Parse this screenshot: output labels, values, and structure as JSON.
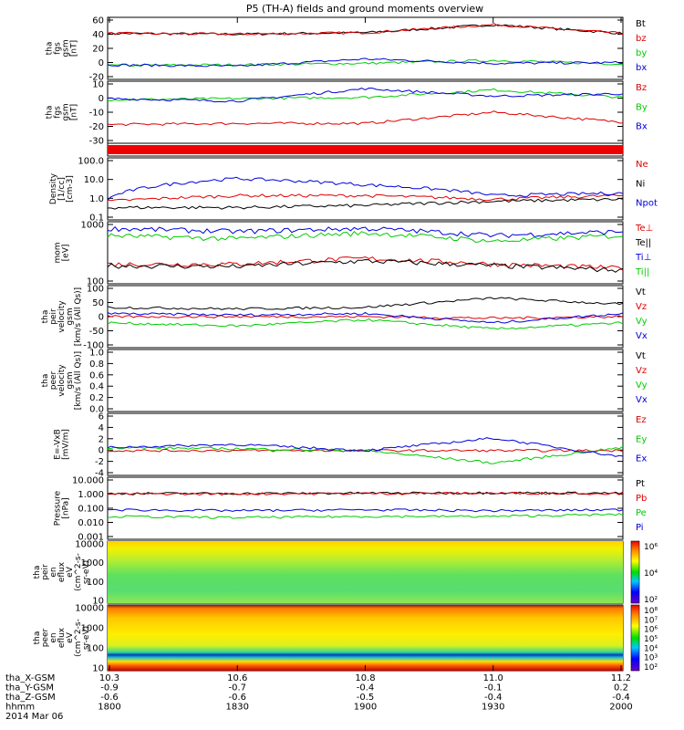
{
  "title": "P5 (TH-A) fields and ground moments overview",
  "colors": {
    "black": "#000000",
    "red": "#e00000",
    "green": "#00cc00",
    "blue": "#0000dd"
  },
  "panels": [
    {
      "id": "p1",
      "ylabel": [
        "tha",
        "fgs",
        "gsm",
        "[nT]"
      ],
      "ticks": [
        "60",
        "40",
        "20",
        "0",
        "-20"
      ],
      "legend": [
        {
          "text": "Bt",
          "color": "black"
        },
        {
          "text": "bz",
          "color": "red"
        },
        {
          "text": "by",
          "color": "green"
        },
        {
          "text": "bx",
          "color": "blue"
        }
      ]
    },
    {
      "id": "p2",
      "ylabel": [
        "tha",
        "fgs",
        "gsm",
        "[nT]"
      ],
      "ticks": [
        "10",
        "0",
        "-10",
        "-20",
        "-30"
      ],
      "legend": [
        {
          "text": "Bz",
          "color": "red"
        },
        {
          "text": "By",
          "color": "green"
        },
        {
          "text": "Bx",
          "color": "blue"
        }
      ]
    },
    {
      "id": "p3",
      "ylabel": [],
      "ticks": [],
      "legend": []
    },
    {
      "id": "p4",
      "ylabel": [
        "Density",
        "[1/cc]",
        "[cm-3]"
      ],
      "ticks": [
        "100.0",
        "10.0",
        "1.0",
        "0.1"
      ],
      "legend": [
        {
          "text": "Ne",
          "color": "red"
        },
        {
          "text": "Ni",
          "color": "black"
        },
        {
          "text": "Npot",
          "color": "blue"
        }
      ]
    },
    {
      "id": "p5",
      "ylabel": [
        "mom",
        "[eV]"
      ],
      "ticks": [
        "1000",
        "100"
      ],
      "legend": [
        {
          "text": "Te⊥",
          "color": "red"
        },
        {
          "text": "Te||",
          "color": "black"
        },
        {
          "text": "Ti⊥",
          "color": "blue"
        },
        {
          "text": "Ti||",
          "color": "green"
        }
      ]
    },
    {
      "id": "p6",
      "ylabel": [
        "tha",
        "peir",
        "velocity",
        "gsm",
        "[km/s (All Qs)]"
      ],
      "ticks": [
        "100",
        "50",
        "0",
        "-50",
        "-100"
      ],
      "legend": [
        {
          "text": "Vt",
          "color": "black"
        },
        {
          "text": "Vz",
          "color": "red"
        },
        {
          "text": "Vy",
          "color": "green"
        },
        {
          "text": "Vx",
          "color": "blue"
        }
      ]
    },
    {
      "id": "p7",
      "ylabel": [
        "tha",
        "peer",
        "velocity",
        "gsm",
        "[km/s (All Qs)]"
      ],
      "ticks": [
        "1.0",
        "0.8",
        "0.6",
        "0.4",
        "0.2",
        "0.0"
      ],
      "legend": [
        {
          "text": "Vt",
          "color": "black"
        },
        {
          "text": "Vz",
          "color": "red"
        },
        {
          "text": "Vy",
          "color": "green"
        },
        {
          "text": "Vx",
          "color": "blue"
        }
      ]
    },
    {
      "id": "p8",
      "ylabel": [
        "E=-VxB",
        "[mV/m]"
      ],
      "ticks": [
        "6",
        "4",
        "2",
        "0",
        "-2",
        "-4"
      ],
      "legend": [
        {
          "text": "Ez",
          "color": "red"
        },
        {
          "text": "Ey",
          "color": "green"
        },
        {
          "text": "Ex",
          "color": "blue"
        }
      ]
    },
    {
      "id": "p9",
      "ylabel": [
        "Pressure",
        "[nPa]"
      ],
      "ticks": [
        "10.000",
        "1.000",
        "0.100",
        "0.010",
        "0.001"
      ],
      "legend": [
        {
          "text": "Pt",
          "color": "black"
        },
        {
          "text": "Pb",
          "color": "red"
        },
        {
          "text": "Pe",
          "color": "green"
        },
        {
          "text": "Pi",
          "color": "blue"
        }
      ]
    },
    {
      "id": "p10",
      "ylabel": [
        "tha",
        "peir",
        "en",
        "eflux",
        "eV",
        "(cm^2-s-",
        "sr-eV)"
      ],
      "ticks": [
        "10000",
        "1000",
        "100",
        "10"
      ],
      "legend": []
    },
    {
      "id": "p11",
      "ylabel": [
        "tha",
        "peer",
        "en",
        "eflux",
        "eV",
        "(cm^2-s-",
        "sr-eV)"
      ],
      "ticks": [
        "10000",
        "1000",
        "100",
        "10"
      ],
      "legend": []
    }
  ],
  "colorbars": [
    {
      "id": "cb1",
      "ticks": [
        "10^6",
        "10^4",
        "10^2"
      ]
    },
    {
      "id": "cb2",
      "ticks": [
        "10^8",
        "10^7",
        "10^6",
        "10^5",
        "10^4",
        "10^3",
        "10^2"
      ]
    }
  ],
  "xaxis": {
    "row_labels": [
      "tha_X-GSM",
      "tha_Y-GSM",
      "tha_Z-GSM",
      "hhmm",
      "2014 Mar 06"
    ],
    "columns": [
      {
        "vals": [
          "10.3",
          "-0.9",
          "-0.6",
          "1800"
        ]
      },
      {
        "vals": [
          "10.6",
          "-0.7",
          "-0.6",
          "1830"
        ]
      },
      {
        "vals": [
          "10.8",
          "-0.4",
          "-0.5",
          "1900"
        ]
      },
      {
        "vals": [
          "11.0",
          "-0.1",
          "-0.4",
          "1930"
        ]
      },
      {
        "vals": [
          "11.2",
          "0.2",
          "-0.4",
          "2000"
        ]
      }
    ]
  },
  "chart_data": {
    "type": "line",
    "x_time_hhmm": [
      "1800",
      "1830",
      "1900",
      "1930",
      "2000"
    ],
    "panels": [
      {
        "name": "fgs_gsm_1",
        "ylim": [
          -20,
          65
        ],
        "series": [
          {
            "name": "Bt",
            "values": [
              43,
              42,
              44,
              55,
              43
            ]
          },
          {
            "name": "bz",
            "values": [
              43,
              42,
              44,
              55,
              43
            ]
          },
          {
            "name": "by",
            "values": [
              -1,
              0,
              2,
              6,
              1
            ]
          },
          {
            "name": "bx",
            "values": [
              0,
              -2,
              8,
              2,
              3
            ]
          }
        ]
      },
      {
        "name": "fgs_gsm_2",
        "ylim": [
          -35,
          15
        ],
        "series": [
          {
            "name": "Bz",
            "values": [
              -20,
              -19,
              -19,
              -10,
              -18
            ]
          },
          {
            "name": "By",
            "values": [
              0,
              1,
              2,
              8,
              2
            ]
          },
          {
            "name": "Bx",
            "values": [
              1,
              -1,
              9,
              3,
              5
            ]
          }
        ]
      },
      {
        "name": "Density",
        "scale": "log",
        "ylim": [
          0.1,
          100
        ],
        "series": [
          {
            "name": "Ne",
            "values": [
              0.8,
              1.5,
              1.5,
              1.0,
              1.5
            ]
          },
          {
            "name": "Ni",
            "values": [
              0.4,
              0.4,
              0.5,
              0.8,
              1.0
            ]
          },
          {
            "name": "Npot",
            "values": [
              1.0,
              10,
              5,
              1.5,
              2
            ]
          }
        ]
      },
      {
        "name": "mom",
        "scale": "log",
        "ylim": [
          50,
          4000
        ],
        "series": [
          {
            "name": "Te⊥",
            "values": [
              200,
              200,
              300,
              200,
              150
            ]
          },
          {
            "name": "Te||",
            "values": [
              180,
              170,
              250,
              180,
              130
            ]
          },
          {
            "name": "Ti⊥",
            "values": [
              2500,
              2000,
              2500,
              1500,
              2000
            ]
          },
          {
            "name": "Ti||",
            "values": [
              1500,
              1200,
              1800,
              1000,
              1500
            ]
          }
        ]
      },
      {
        "name": "peir_velocity",
        "ylim": [
          -100,
          100
        ],
        "series": [
          {
            "name": "Vt",
            "values": [
              30,
              25,
              30,
              60,
              40
            ]
          },
          {
            "name": "Vz",
            "values": [
              0,
              0,
              0,
              -5,
              0
            ]
          },
          {
            "name": "Vy",
            "values": [
              -20,
              -30,
              -10,
              -40,
              -20
            ]
          },
          {
            "name": "Vx",
            "values": [
              10,
              5,
              10,
              -20,
              10
            ]
          }
        ]
      },
      {
        "name": "peer_velocity",
        "ylim": [
          0,
          1
        ],
        "series": []
      },
      {
        "name": "E=-VxB",
        "ylim": [
          -4,
          6
        ],
        "series": [
          {
            "name": "Ez",
            "values": [
              0,
              0,
              0,
              0,
              0
            ]
          },
          {
            "name": "Ey",
            "values": [
              0.5,
              0.3,
              0,
              -2,
              0.5
            ]
          },
          {
            "name": "Ex",
            "values": [
              0.5,
              1,
              0,
              2,
              -1
            ]
          }
        ]
      },
      {
        "name": "Pressure",
        "scale": "log",
        "ylim": [
          0.001,
          10
        ],
        "series": [
          {
            "name": "Pt",
            "values": [
              0.9,
              0.9,
              0.95,
              1.0,
              0.95
            ]
          },
          {
            "name": "Pb",
            "values": [
              0.85,
              0.85,
              0.9,
              0.95,
              0.9
            ]
          },
          {
            "name": "Pe",
            "values": [
              0.03,
              0.025,
              0.03,
              0.03,
              0.04
            ]
          },
          {
            "name": "Pi",
            "values": [
              0.08,
              0.07,
              0.08,
              0.07,
              0.08
            ]
          }
        ]
      }
    ]
  }
}
